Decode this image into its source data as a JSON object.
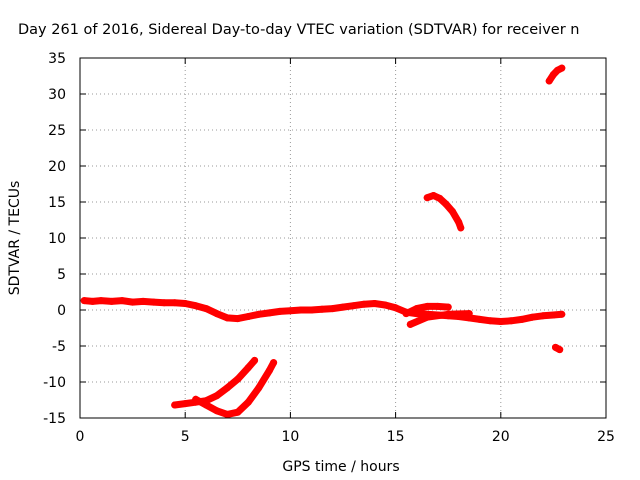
{
  "chart_data": {
    "type": "scatter",
    "title": "Day 261 of 2016, Sidereal Day-to-day VTEC variation (SDTVAR) for receiver n",
    "xlabel": "GPS time / hours",
    "ylabel": "SDTVAR / TECUs",
    "xlim": [
      0,
      25
    ],
    "ylim": [
      -15,
      35
    ],
    "x_ticks": [
      0,
      5,
      10,
      15,
      20,
      25
    ],
    "y_ticks": [
      -15,
      -10,
      -5,
      0,
      5,
      10,
      15,
      20,
      25,
      30,
      35
    ],
    "grid": true,
    "color": "#ff0000",
    "series": [
      {
        "x": [
          0.2,
          0.6,
          1.0,
          1.5,
          2.0,
          2.5,
          3.0,
          3.5,
          4.0,
          4.5,
          5.0,
          5.5,
          6.0,
          6.5,
          7.0,
          7.5,
          8.0,
          8.5,
          9.0,
          9.5,
          10.0,
          10.5,
          11.0,
          11.5,
          12.0,
          12.5,
          13.0,
          13.5,
          14.0,
          14.5,
          15.0,
          15.5,
          16.0,
          16.5,
          17.0,
          17.5,
          18.0,
          18.5,
          19.0,
          19.5,
          20.0,
          20.5,
          21.0,
          21.5,
          22.0,
          22.5,
          22.9
        ],
        "y": [
          1.3,
          1.2,
          1.3,
          1.2,
          1.3,
          1.1,
          1.2,
          1.1,
          1.0,
          1.0,
          0.9,
          0.6,
          0.2,
          -0.5,
          -1.1,
          -1.2,
          -0.9,
          -0.6,
          -0.4,
          -0.2,
          -0.1,
          0.0,
          0.0,
          0.1,
          0.2,
          0.4,
          0.6,
          0.8,
          0.9,
          0.7,
          0.3,
          -0.3,
          -0.5,
          -0.6,
          -0.7,
          -0.8,
          -0.9,
          -1.1,
          -1.3,
          -1.5,
          -1.6,
          -1.5,
          -1.3,
          -1.0,
          -0.8,
          -0.7,
          -0.6
        ]
      },
      {
        "x": [
          15.5,
          16.0,
          16.5,
          17.0,
          17.5
        ],
        "y": [
          -0.5,
          0.2,
          0.5,
          0.5,
          0.4
        ]
      },
      {
        "x": [
          15.7,
          16.5,
          17.5,
          18.5
        ],
        "y": [
          -2.0,
          -1.0,
          -0.6,
          -0.5
        ]
      },
      {
        "x": [
          16.5,
          16.8,
          17.1,
          17.4,
          17.7,
          18.0,
          18.1
        ],
        "y": [
          15.6,
          15.9,
          15.5,
          14.7,
          13.7,
          12.2,
          11.4
        ]
      },
      {
        "x": [
          22.3,
          22.5,
          22.7,
          22.9
        ],
        "y": [
          31.8,
          32.7,
          33.3,
          33.6
        ]
      },
      {
        "x": [
          22.6,
          22.8
        ],
        "y": [
          -5.2,
          -5.5
        ]
      },
      {
        "x": [
          4.5,
          5.0,
          5.5,
          6.0,
          6.5,
          7.0,
          7.5,
          8.0,
          8.3
        ],
        "y": [
          -13.2,
          -13.0,
          -12.8,
          -12.6,
          -11.9,
          -10.8,
          -9.6,
          -8.0,
          -7.0
        ]
      },
      {
        "x": [
          5.5,
          6.0,
          6.5,
          7.0,
          7.5,
          8.0,
          8.5,
          9.0,
          9.2
        ],
        "y": [
          -12.4,
          -13.2,
          -14.0,
          -14.5,
          -14.2,
          -12.8,
          -10.8,
          -8.4,
          -7.3
        ]
      }
    ]
  }
}
